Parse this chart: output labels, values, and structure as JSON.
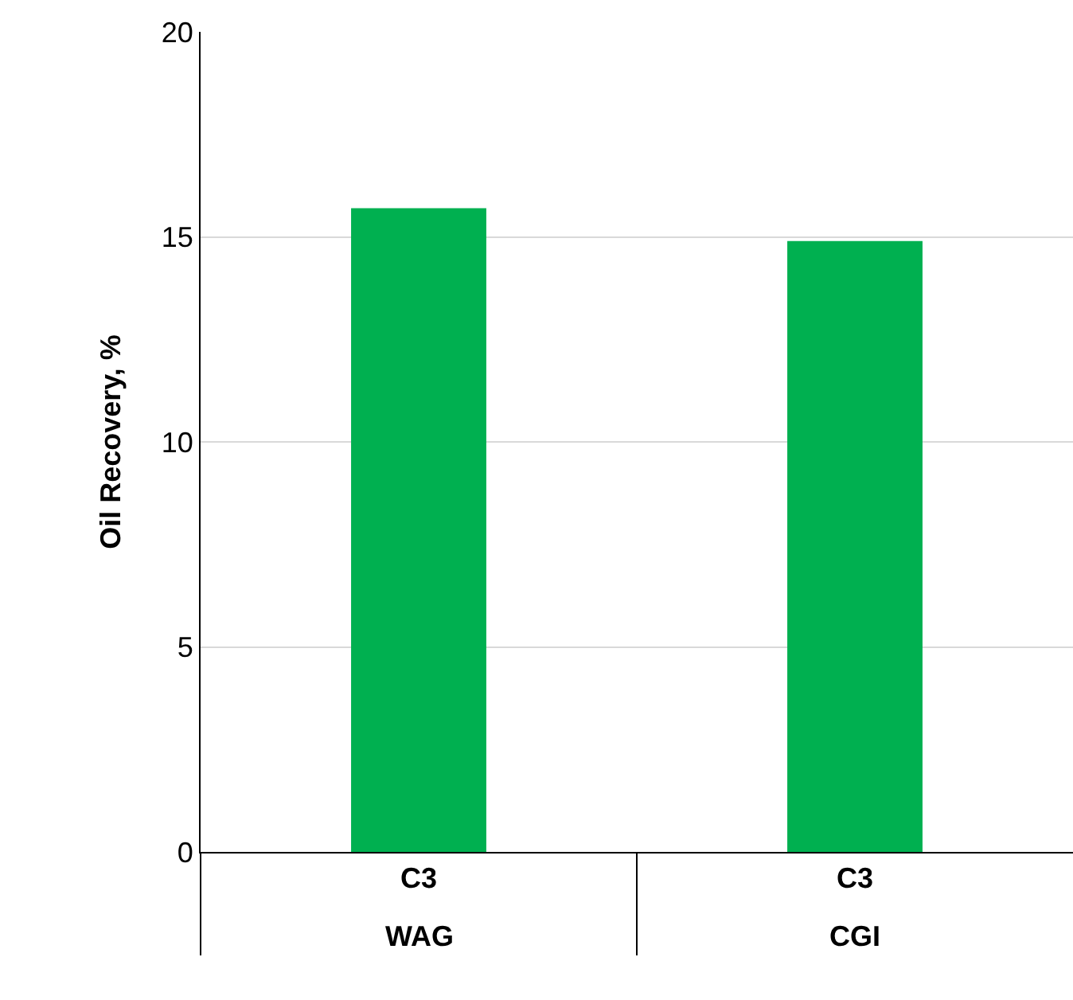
{
  "chart_data": {
    "type": "bar",
    "ylabel": "Oil Recovery, %",
    "categories": [
      "C3",
      "C3"
    ],
    "annotations": [
      "WAG",
      "CGI"
    ],
    "values": [
      15.7,
      14.9
    ],
    "color": "#00b050",
    "ylim": [
      0,
      20
    ],
    "yticks": [
      0,
      5,
      10,
      15,
      20
    ],
    "grid": "y"
  }
}
